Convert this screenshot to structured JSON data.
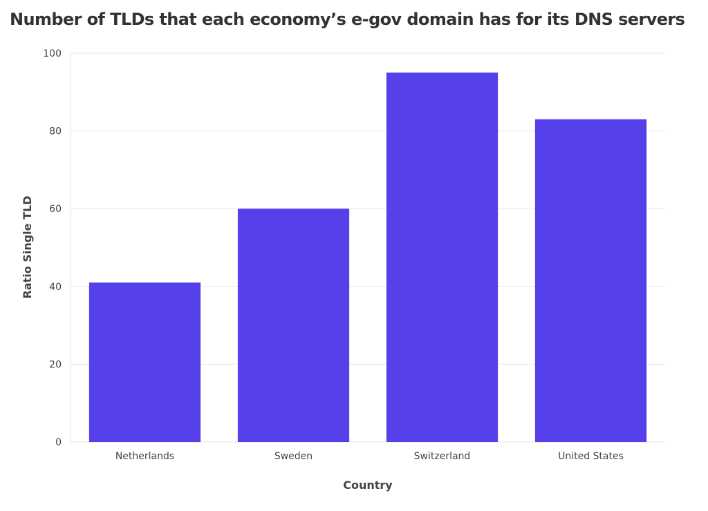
{
  "chart_data": {
    "type": "bar",
    "title": "Number of TLDs that each economy’s e-gov domain has for its DNS servers",
    "xlabel": "Country",
    "ylabel": "Ratio Single TLD",
    "categories": [
      "Netherlands",
      "Sweden",
      "Switzerland",
      "United States"
    ],
    "values": [
      41,
      60,
      95,
      83
    ],
    "ylim": [
      0,
      100
    ],
    "yticks": [
      0,
      20,
      40,
      60,
      80,
      100
    ],
    "grid": true,
    "legend": "none",
    "bar_color": "#5540EA"
  }
}
